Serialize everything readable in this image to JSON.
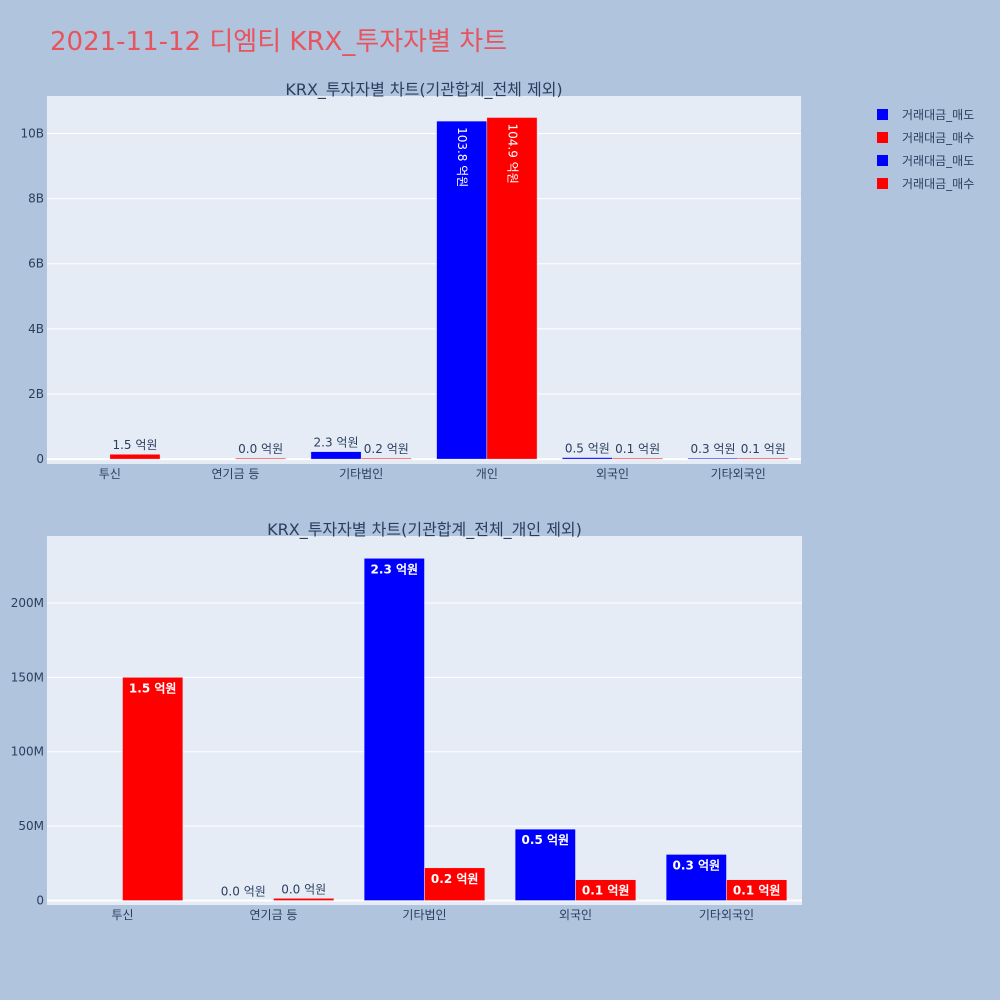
{
  "page_title": "2021-11-12 디엠티 KRX_투자자별 차트",
  "colors": {
    "sell": "#0000ff",
    "buy": "#ff0000",
    "title": "#e8545e",
    "plot_bg": "#e5ecf6",
    "text": "#2a3f5f"
  },
  "legend": [
    {
      "label": "거래대금_매도",
      "color": "#0000ff"
    },
    {
      "label": "거래대금_매수",
      "color": "#ff0000"
    },
    {
      "label": "거래대금_매도",
      "color": "#0000ff"
    },
    {
      "label": "거래대금_매수",
      "color": "#ff0000"
    }
  ],
  "chart_data": [
    {
      "type": "bar",
      "title": "KRX_투자자별 차트(기관합계_전체 제외)",
      "categories": [
        "투신",
        "연기금 등",
        "기타법인",
        "개인",
        "외국인",
        "기타외국인"
      ],
      "series": [
        {
          "name": "거래대금_매도",
          "color": "#0000ff",
          "values": [
            0,
            0,
            230000000,
            10380000000,
            48000000,
            31000000
          ],
          "labels": [
            "",
            "",
            "2.3 억원",
            "103.8 억원",
            "0.5 억원",
            "0.3 억원"
          ]
        },
        {
          "name": "거래대금_매수",
          "color": "#ff0000",
          "values": [
            150000000,
            1500000,
            22000000,
            10490000000,
            14000000,
            14000000
          ],
          "labels": [
            "1.5 억원",
            "0.0 억원",
            "0.2 억원",
            "104.9 억원",
            "0.1 억원",
            "0.1 억원"
          ]
        }
      ],
      "ylim": [
        -150000000,
        11150000000
      ],
      "yticks": [
        {
          "value": 0,
          "label": "0"
        },
        {
          "value": 2000000000,
          "label": "2B"
        },
        {
          "value": 4000000000,
          "label": "4B"
        },
        {
          "value": 6000000000,
          "label": "6B"
        },
        {
          "value": 8000000000,
          "label": "8B"
        },
        {
          "value": 10000000000,
          "label": "10B"
        }
      ],
      "grid": true
    },
    {
      "type": "bar",
      "title": "KRX_투자자별 차트(기관합계_전체_개인 제외)",
      "categories": [
        "투신",
        "연기금 등",
        "기타법인",
        "외국인",
        "기타외국인"
      ],
      "series": [
        {
          "name": "거래대금_매도",
          "color": "#0000ff",
          "values": [
            0,
            0,
            230000000,
            48000000,
            31000000
          ],
          "labels": [
            "",
            "0.0 억원",
            "2.3 억원",
            "0.5 억원",
            "0.3 억원"
          ]
        },
        {
          "name": "거래대금_매수",
          "color": "#ff0000",
          "values": [
            150000000,
            1500000,
            22000000,
            14000000,
            14000000
          ],
          "labels": [
            "1.5 억원",
            "0.0 억원",
            "0.2 억원",
            "0.1 억원",
            "0.1 억원"
          ]
        }
      ],
      "ylim": [
        -3000000,
        245000000
      ],
      "yticks": [
        {
          "value": 0,
          "label": "0"
        },
        {
          "value": 50000000,
          "label": "50M"
        },
        {
          "value": 100000000,
          "label": "100M"
        },
        {
          "value": 150000000,
          "label": "150M"
        },
        {
          "value": 200000000,
          "label": "200M"
        }
      ],
      "grid": true
    }
  ]
}
